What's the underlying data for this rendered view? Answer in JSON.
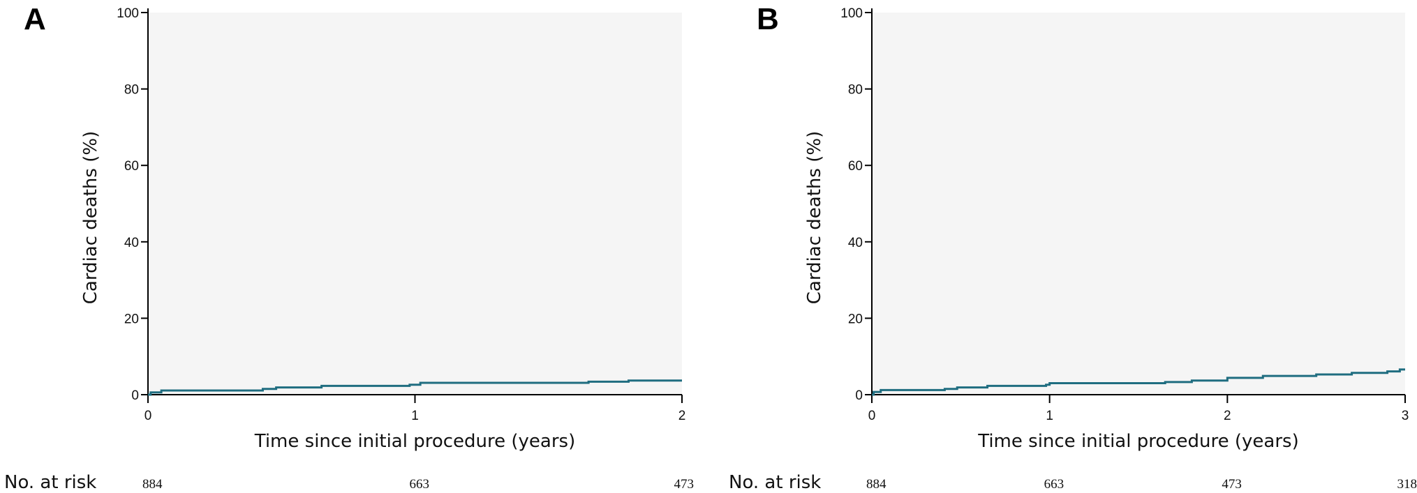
{
  "chart_data": [
    {
      "type": "line",
      "panel_label": "A",
      "xlabel": "Time since initial procedure (years)",
      "ylabel": "Cardiac deaths (%)",
      "xlim": [
        0,
        2
      ],
      "ylim": [
        0,
        100
      ],
      "xticks": [
        0,
        1,
        2
      ],
      "yticks": [
        0,
        20,
        40,
        60,
        80,
        100
      ],
      "grid": false,
      "background_color": "#f5f5f5",
      "series": [
        {
          "color": "#1f6d80",
          "step": true,
          "x": [
            0,
            0.01,
            0.05,
            0.43,
            0.48,
            0.65,
            0.98,
            1.02,
            1.65,
            1.8,
            2.0
          ],
          "y": [
            0,
            0.6,
            1.1,
            1.5,
            1.9,
            2.3,
            2.6,
            3.1,
            3.4,
            3.7,
            3.7
          ]
        }
      ],
      "risk_table": {
        "label": "No. at risk",
        "x": [
          0,
          1,
          2
        ],
        "values": [
          "884",
          "663",
          "473"
        ]
      }
    },
    {
      "type": "line",
      "panel_label": "B",
      "xlabel": "Time since initial procedure (years)",
      "ylabel": "Cardiac deaths (%)",
      "xlim": [
        0,
        3
      ],
      "ylim": [
        0,
        100
      ],
      "xticks": [
        0,
        1,
        2,
        3
      ],
      "yticks": [
        0,
        20,
        40,
        60,
        80,
        100
      ],
      "grid": false,
      "background_color": "#f5f5f5",
      "series": [
        {
          "color": "#1f6d80",
          "step": true,
          "x": [
            0,
            0.01,
            0.05,
            0.41,
            0.48,
            0.65,
            0.98,
            1.0,
            1.65,
            1.8,
            2.0,
            2.2,
            2.5,
            2.7,
            2.9,
            2.97,
            3.0
          ],
          "y": [
            0,
            0.7,
            1.2,
            1.5,
            1.9,
            2.3,
            2.6,
            3.0,
            3.3,
            3.7,
            4.4,
            4.9,
            5.3,
            5.7,
            6.1,
            6.6,
            6.6
          ]
        }
      ],
      "risk_table": {
        "label": "No. at risk",
        "x": [
          0,
          1,
          2,
          3
        ],
        "values": [
          "884",
          "663",
          "473",
          "318"
        ]
      }
    }
  ]
}
